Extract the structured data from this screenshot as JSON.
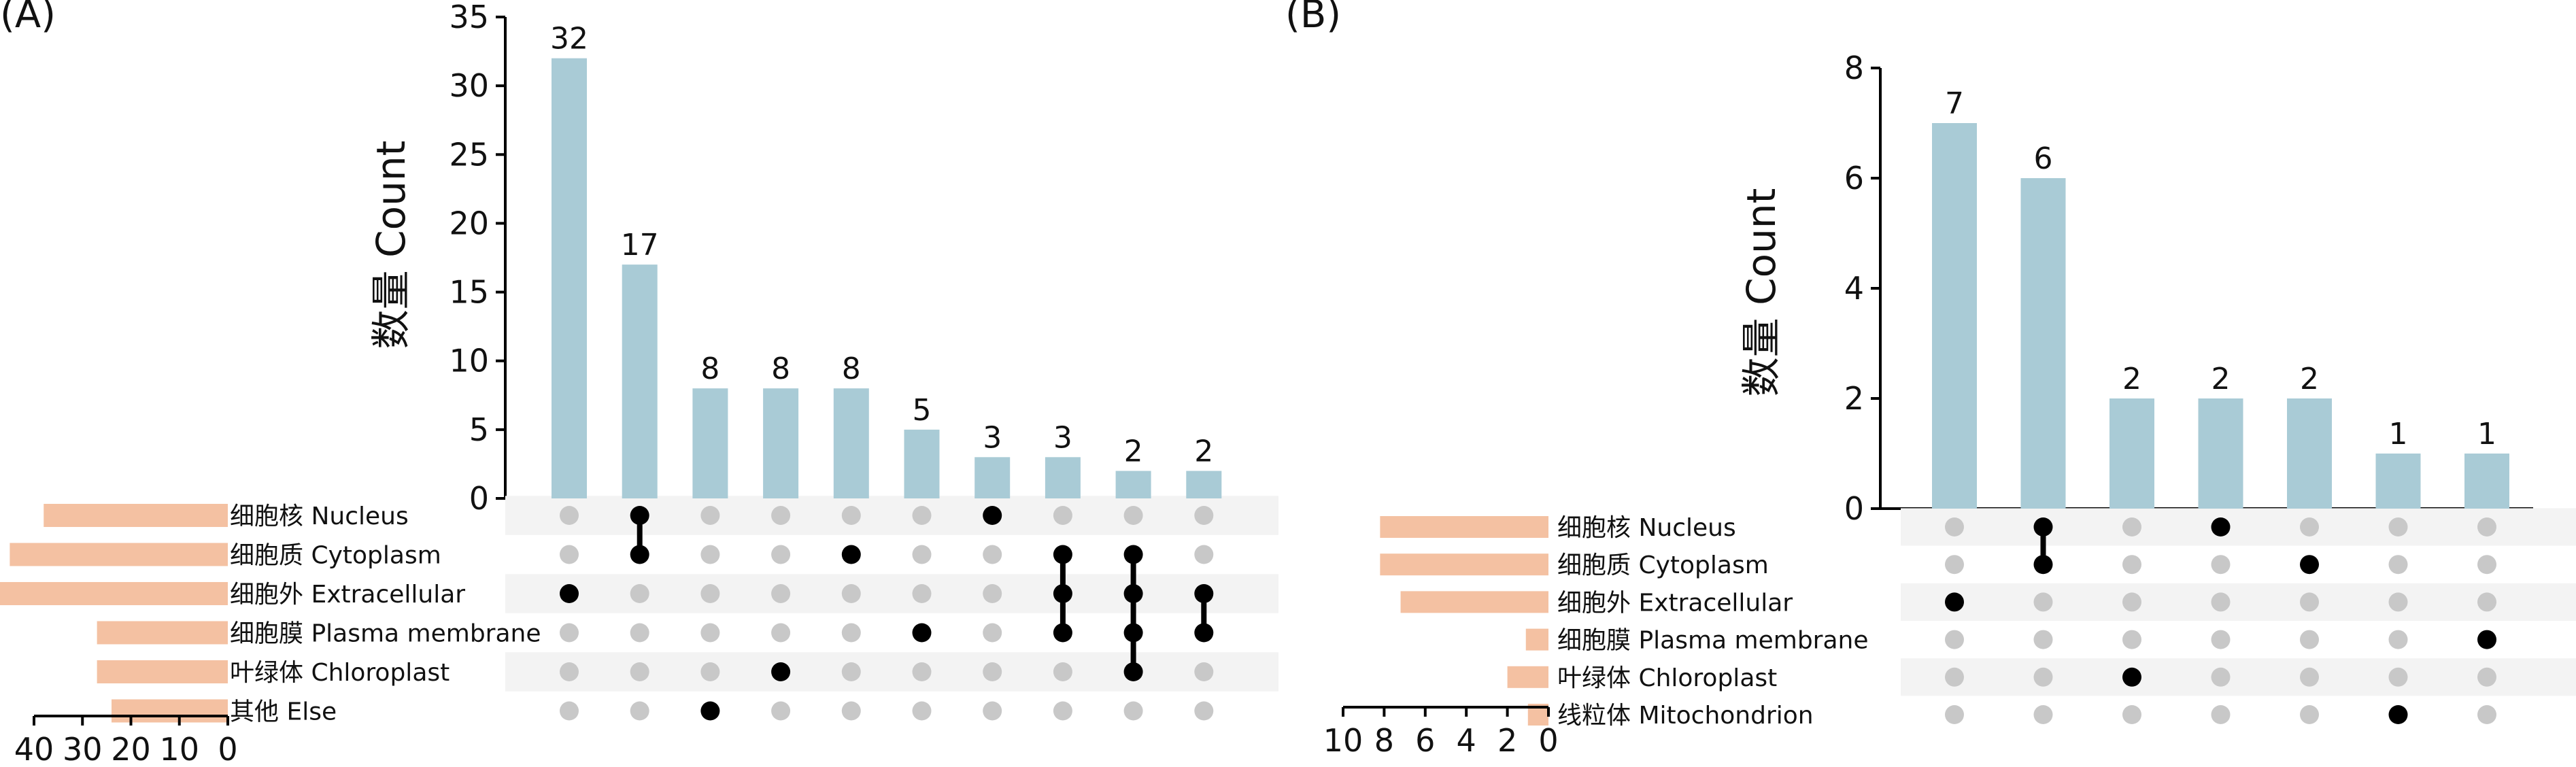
{
  "panels": [
    {
      "panel_label": "(A)",
      "ylabel": "数量 Count",
      "yticks": [
        "0",
        "5",
        "10",
        "15",
        "20",
        "25",
        "30",
        "35"
      ],
      "set_ticks": [
        "40",
        "30",
        "20",
        "10",
        "0"
      ]
    },
    {
      "panel_label": "(B)",
      "ylabel": "数量 Count",
      "yticks": [
        "0",
        "2",
        "4",
        "6",
        "8"
      ],
      "set_ticks": [
        "10",
        "8",
        "6",
        "4",
        "2",
        "0"
      ]
    }
  ],
  "chart_data": [
    {
      "type": "bar",
      "subtype": "upset",
      "panel": "(A)",
      "ylabel": "数量 Count",
      "ylim": [
        0,
        35
      ],
      "yticks": [
        0,
        5,
        10,
        15,
        20,
        25,
        30,
        35
      ],
      "bar_color": "#a9cbd6",
      "set_bar_color": "#f4c1a2",
      "sets": [
        "细胞核 Nucleus",
        "细胞质 Cytoplasm",
        "细胞外 Extracellular",
        "细胞膜 Plasma membrane",
        "叶绿体 Chloroplast",
        "其他 Else"
      ],
      "set_sizes": [
        38,
        45,
        49,
        27,
        27,
        24
      ],
      "set_size_xlim": [
        0,
        40
      ],
      "set_size_ticks": [
        40,
        30,
        20,
        10,
        0
      ],
      "intersections": [
        {
          "members": [
            2
          ],
          "count": 32
        },
        {
          "members": [
            0,
            1
          ],
          "count": 17
        },
        {
          "members": [
            5
          ],
          "count": 8
        },
        {
          "members": [
            4
          ],
          "count": 8
        },
        {
          "members": [
            1
          ],
          "count": 8
        },
        {
          "members": [
            3
          ],
          "count": 5
        },
        {
          "members": [
            0
          ],
          "count": 3
        },
        {
          "members": [
            1,
            2,
            3
          ],
          "count": 3
        },
        {
          "members": [
            1,
            2,
            3,
            4
          ],
          "count": 2
        },
        {
          "members": [
            2,
            3
          ],
          "count": 2
        }
      ]
    },
    {
      "type": "bar",
      "subtype": "upset",
      "panel": "(B)",
      "ylabel": "数量 Count",
      "ylim": [
        0,
        8
      ],
      "yticks": [
        0,
        2,
        4,
        6,
        8
      ],
      "bar_color": "#a9cbd6",
      "set_bar_color": "#f4c1a2",
      "sets": [
        "细胞核 Nucleus",
        "细胞质 Cytoplasm",
        "细胞外 Extracellular",
        "细胞膜 Plasma membrane",
        "叶绿体 Chloroplast",
        "线粒体 Mitochondrion"
      ],
      "set_sizes": [
        8.2,
        8.2,
        7.2,
        1.1,
        2.0,
        1.0
      ],
      "set_size_xlim": [
        0,
        10
      ],
      "set_size_ticks": [
        10,
        8,
        6,
        4,
        2,
        0
      ],
      "intersections": [
        {
          "members": [
            2
          ],
          "count": 7
        },
        {
          "members": [
            0,
            1
          ],
          "count": 6
        },
        {
          "members": [
            4
          ],
          "count": 2
        },
        {
          "members": [
            0
          ],
          "count": 2
        },
        {
          "members": [
            1
          ],
          "count": 2
        },
        {
          "members": [
            5
          ],
          "count": 1
        },
        {
          "members": [
            3
          ],
          "count": 1
        }
      ]
    }
  ]
}
